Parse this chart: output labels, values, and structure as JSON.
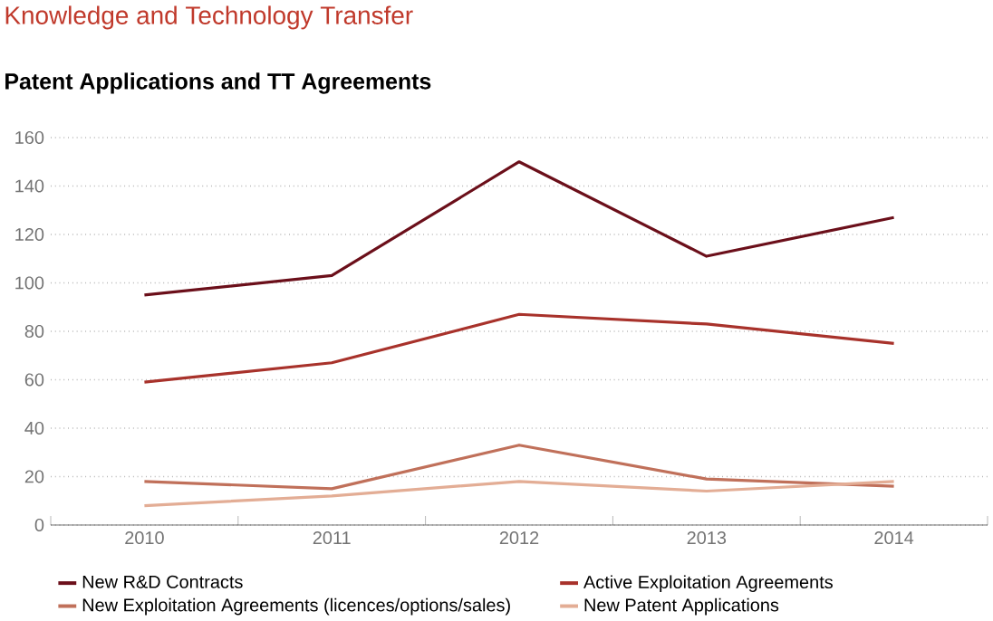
{
  "chart_data": {
    "type": "line",
    "title": "Knowledge and Technology Transfer",
    "subtitle": "Patent Applications and TT Agreements",
    "categories": [
      "2010",
      "2011",
      "2012",
      "2013",
      "2014"
    ],
    "series": [
      {
        "name": "New R&D Contracts",
        "color": "#6b0f1a",
        "values": [
          95,
          103,
          150,
          111,
          127
        ]
      },
      {
        "name": "Active Exploitation Agreements",
        "color": "#a8322b",
        "values": [
          59,
          67,
          87,
          83,
          75
        ]
      },
      {
        "name": "New Exploitation Agreements (licences/options/sales)",
        "color": "#c0705a",
        "values": [
          18,
          15,
          33,
          19,
          16
        ]
      },
      {
        "name": "New Patent Applications",
        "color": "#e3ad95",
        "values": [
          8,
          12,
          18,
          14,
          18
        ]
      }
    ],
    "ylim": [
      0,
      160
    ],
    "yticks": [
      0,
      20,
      40,
      60,
      80,
      100,
      120,
      140,
      160
    ],
    "grid": "y",
    "legend": "bottom",
    "marker": "none",
    "line_style": "solid"
  }
}
